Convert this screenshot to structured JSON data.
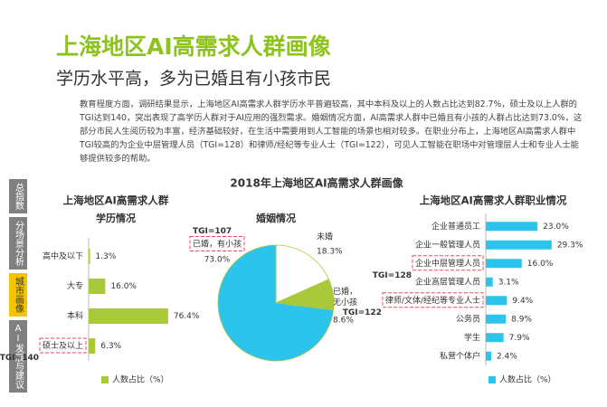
{
  "header": {
    "title": "上海地区AI高需求人群画像",
    "subtitle": "学历水平高，多为已婚且有小孩市民"
  },
  "body": "教育程度方面，调研结果显示，上海地区AI高需求人群学历水平普遍较高，其中本科及以上的人数占比达到82.7%，硕士及以上人群的TGI达到140，突出表现了高学历人群对于AI应用的强烈需求。婚姻情况方面，AI高需求人群中已婚且有小孩的人群占比达到73.0%，这部分市民人生阅历较为丰富，经济基础较好，在生活中需要用到人工智能的场景也相对较多。在职业分布上，上海地区AI高需求人群中TGI较高的为企业中层管理人员（TGI=128）和律师/经纪等专业人士（TGI=122），可见人工智能在职场中对管理层人士和专业人士能够提供较多的帮助。",
  "sidebar": {
    "items": [
      "总指数",
      "分场景分析",
      "城市画像",
      "AI发展与建议"
    ],
    "active": 2
  },
  "figure_title": "2018年上海地区AI高需求人群画像",
  "chart_data": [
    {
      "type": "bar",
      "orientation": "horizontal",
      "title": "上海地区AI高需求人群",
      "subtitle": "学历情况",
      "categories": [
        "高中及以下",
        "大专",
        "本科",
        "硕士及以上"
      ],
      "series": [
        {
          "name": "人数占比（%）",
          "color": "#a9c93b",
          "values": [
            1.3,
            16.0,
            76.4,
            6.3
          ],
          "value_labels": [
            "1.3%",
            "16.0%",
            "76.4%",
            "6.3%"
          ]
        }
      ],
      "annotations": [
        null,
        null,
        null,
        "TGI=140"
      ],
      "xlim": [
        0,
        80
      ]
    },
    {
      "type": "pie",
      "title": "婚姻情况",
      "categories": [
        "未婚",
        "已婚，无小孩",
        "已婚，有小孩"
      ],
      "values": [
        18.3,
        8.6,
        73.0
      ],
      "value_labels": [
        "18.3%",
        "8.6%",
        "73.0%"
      ],
      "colors": [
        "#ffffff",
        "#a9c93b",
        "#2cc4ec"
      ],
      "annotations": [
        null,
        null,
        "TGI=107"
      ]
    },
    {
      "type": "bar",
      "orientation": "horizontal",
      "title": "上海地区AI高需求人群职业情况",
      "categories": [
        "企业普通员工",
        "企业一般管理人员",
        "企业中层管理人员",
        "企业高层管理人员",
        "律师/文体/经纪等专业人士",
        "公务员",
        "学生",
        "私营个体户"
      ],
      "series": [
        {
          "name": "人数占比（%）",
          "color": "#2cc4ec",
          "values": [
            23.0,
            29.3,
            16.0,
            3.1,
            9.4,
            8.9,
            7.9,
            2.4
          ],
          "value_labels": [
            "23.0%",
            "29.3%",
            "16.0%",
            "3.1%",
            "9.4%",
            "8.9%",
            "7.9%",
            "2.4%"
          ]
        }
      ],
      "annotations": [
        null,
        null,
        "TGI=128",
        null,
        "TGI=122",
        null,
        null,
        null
      ],
      "xlim": [
        0,
        35
      ]
    }
  ]
}
